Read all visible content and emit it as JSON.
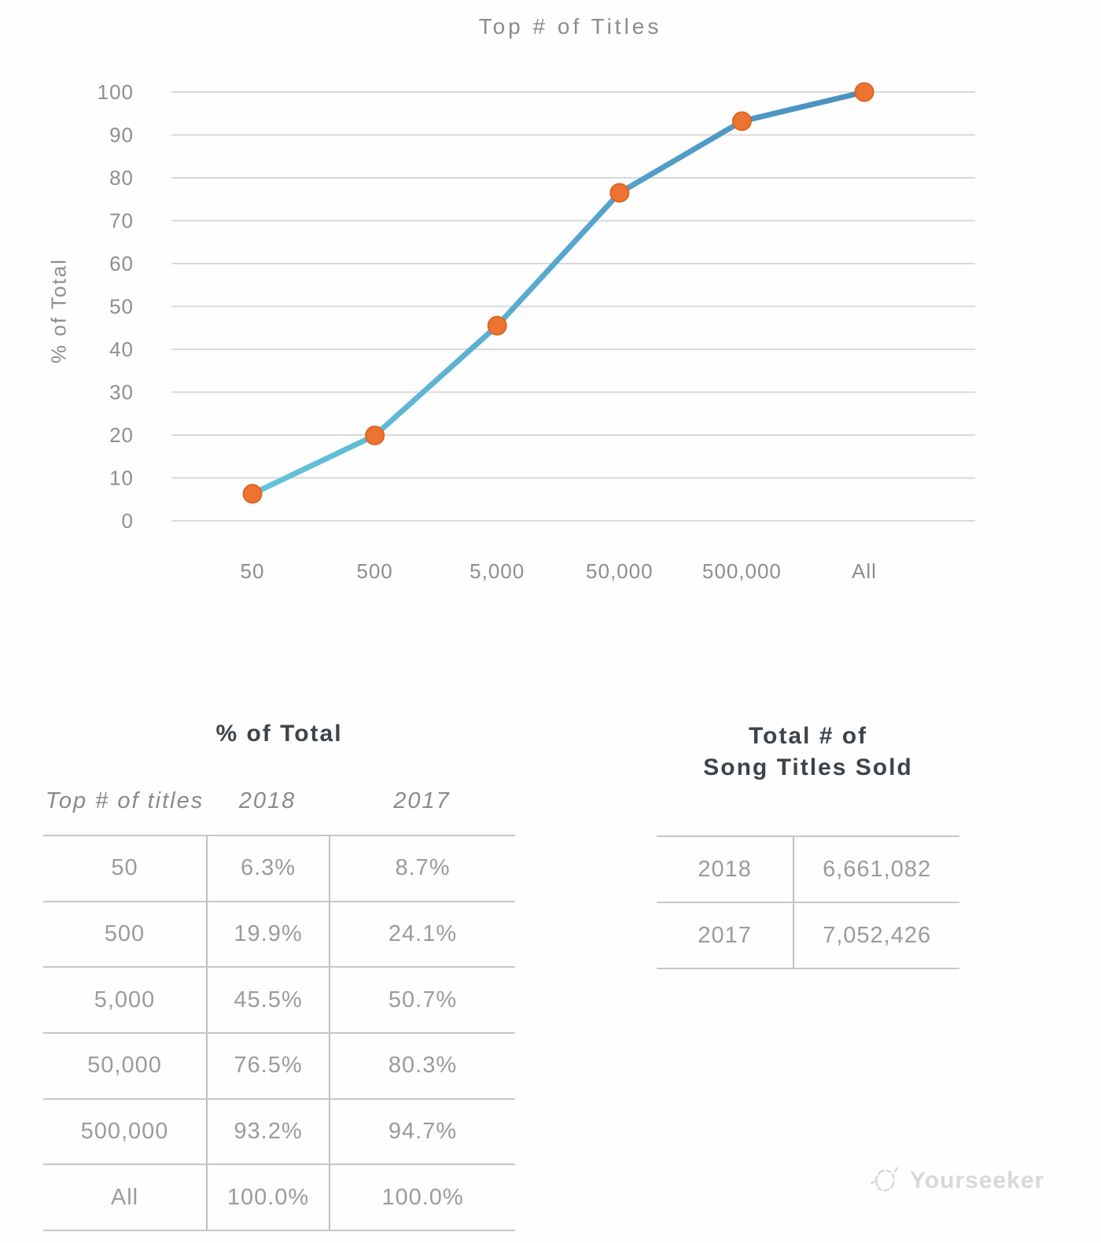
{
  "chart_data": {
    "type": "line",
    "title": "Top # of Titles",
    "xlabel": "",
    "ylabel": "% of Total",
    "categories": [
      "50",
      "500",
      "5,000",
      "50,000",
      "500,000",
      "All"
    ],
    "series": [
      {
        "name": "2018",
        "values": [
          6.3,
          19.9,
          45.5,
          76.5,
          93.2,
          100.0
        ]
      }
    ],
    "ylim": [
      0,
      100
    ],
    "ytick_step": 10,
    "grid": true,
    "legend": "none",
    "colors": {
      "grid": "#d9d9d9",
      "line_start": "#64c3d9",
      "line_end": "#4b90c2",
      "marker": "#ed7430",
      "marker_edge": "#de6322"
    }
  },
  "pct_table": {
    "title": "% of Total",
    "columns": [
      "Top # of titles",
      "2018",
      "2017"
    ],
    "rows": [
      [
        "50",
        "6.3%",
        "8.7%"
      ],
      [
        "500",
        "19.9%",
        "24.1%"
      ],
      [
        "5,000",
        "45.5%",
        "50.7%"
      ],
      [
        "50,000",
        "76.5%",
        "80.3%"
      ],
      [
        "500,000",
        "93.2%",
        "94.7%"
      ],
      [
        "All",
        "100.0%",
        "100.0%"
      ]
    ]
  },
  "totals_table": {
    "title_line1": "Total # of",
    "title_line2": "Song Titles Sold",
    "rows": [
      [
        "2018",
        "6,661,082"
      ],
      [
        "2017",
        "7,052,426"
      ]
    ]
  },
  "watermark": {
    "label": "Yourseeker"
  }
}
